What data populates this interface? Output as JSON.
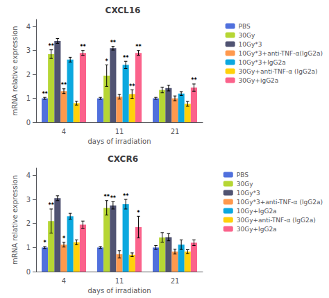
{
  "chart_data": [
    {
      "type": "bar",
      "title": "CXCL16",
      "categories": [
        "4",
        "11",
        "21"
      ],
      "series": [
        {
          "name": "PBS",
          "values": [
            1.0,
            1.0,
            1.0
          ],
          "errors": [
            0.04,
            0.04,
            0.04
          ],
          "significance": [
            "**",
            null,
            null
          ]
        },
        {
          "name": "30Gy",
          "values": [
            2.85,
            1.95,
            1.35
          ],
          "errors": [
            0.18,
            0.45,
            0.12
          ],
          "significance": [
            "**",
            "*",
            null
          ]
        },
        {
          "name": "10Gy*3",
          "values": [
            3.4,
            3.1,
            1.43
          ],
          "errors": [
            0.1,
            0.08,
            0.12
          ],
          "significance": [
            null,
            "**",
            null
          ]
        },
        {
          "name": "10Gy*3+anti-TNF-α(IgG2a)",
          "values": [
            1.3,
            1.07,
            1.0
          ],
          "errors": [
            0.1,
            0.1,
            0.1
          ],
          "significance": [
            "**",
            null,
            null
          ]
        },
        {
          "name": "10Gy*3+IgG2a",
          "values": [
            2.62,
            2.4,
            1.2
          ],
          "errors": [
            0.1,
            0.15,
            0.08
          ],
          "significance": [
            null,
            "**",
            null
          ]
        },
        {
          "name": "30Gy+anti-TNF-α (IgG2a)",
          "values": [
            0.8,
            1.18,
            0.77
          ],
          "errors": [
            0.08,
            0.18,
            0.1
          ],
          "significance": [
            null,
            "**",
            null
          ]
        },
        {
          "name": "30Gy+igG2a",
          "values": [
            2.9,
            2.9,
            1.45
          ],
          "errors": [
            0.1,
            0.1,
            0.15
          ],
          "significance": [
            "**",
            "**",
            "**"
          ]
        }
      ],
      "xlabel": "days of irradiation",
      "ylabel": "mRNA relative expression",
      "ylim": [
        0,
        4.3
      ],
      "yticks": [
        0,
        1,
        2,
        3,
        4
      ],
      "grid": false,
      "legend": "right"
    },
    {
      "type": "bar",
      "title": "CXCR6",
      "categories": [
        "4",
        "11",
        "21"
      ],
      "series": [
        {
          "name": "PBS",
          "values": [
            1.0,
            1.0,
            1.0
          ],
          "errors": [
            0.04,
            0.04,
            0.08
          ],
          "significance": [
            "*",
            null,
            null
          ]
        },
        {
          "name": "30Gy",
          "values": [
            2.1,
            2.65,
            1.42
          ],
          "errors": [
            0.5,
            0.3,
            0.2
          ],
          "significance": [
            "**",
            "**",
            null
          ]
        },
        {
          "name": "10Gy*3",
          "values": [
            3.05,
            2.75,
            1.43
          ],
          "errors": [
            0.1,
            0.15,
            0.15
          ],
          "significance": [
            null,
            "**",
            null
          ]
        },
        {
          "name": "10Gy*3+anti-TNF-α (IgG2a)",
          "values": [
            1.12,
            0.72,
            0.83
          ],
          "errors": [
            0.1,
            0.15,
            0.1
          ],
          "significance": [
            "*",
            null,
            null
          ]
        },
        {
          "name": "10Gy+IgG2a",
          "values": [
            2.3,
            2.8,
            1.12
          ],
          "errors": [
            0.12,
            0.2,
            0.2
          ],
          "significance": [
            null,
            "**",
            null
          ]
        },
        {
          "name": "30Gy+anti-TNF-α (IgG2a)",
          "values": [
            1.22,
            0.7,
            0.83
          ],
          "errors": [
            0.1,
            0.08,
            0.08
          ],
          "significance": [
            null,
            null,
            null
          ]
        },
        {
          "name": "30Gy+IgG2a",
          "values": [
            1.95,
            1.85,
            1.2
          ],
          "errors": [
            0.15,
            0.45,
            0.12
          ],
          "significance": [
            null,
            "*",
            null
          ]
        }
      ],
      "xlabel": "days of irradiation",
      "ylabel": "mRNA relative expression",
      "ylim": [
        0,
        4.3
      ],
      "yticks": [
        0,
        1,
        2,
        3,
        4
      ],
      "grid": false,
      "legend": "right"
    }
  ]
}
